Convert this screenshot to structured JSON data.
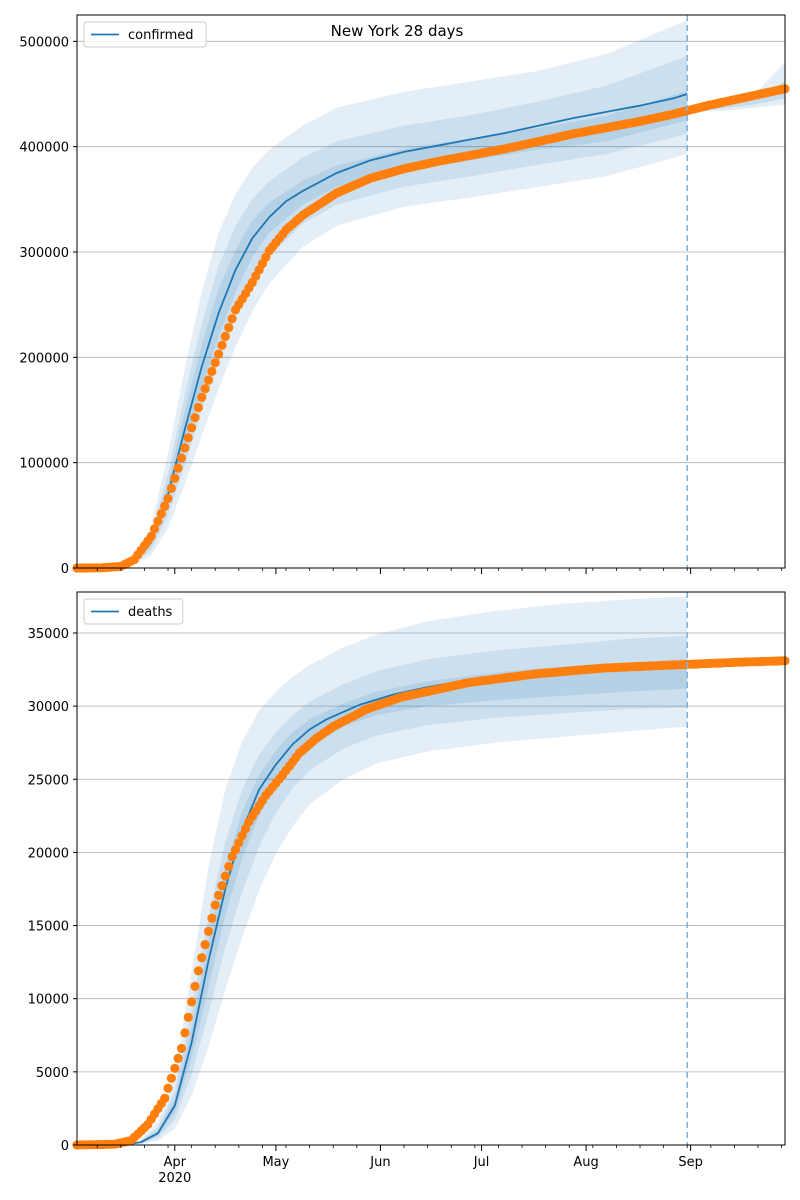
{
  "figure_title": "New York 28 days",
  "colors": {
    "model_line": "#1f77b4",
    "observed_points": "#ff7f0e",
    "band": "#1f77b4",
    "forecast_line": "#7fb3dc",
    "grid": "#b0b0b0"
  },
  "x_axis": {
    "date_range": [
      "2020-03-03",
      "2020-09-29"
    ],
    "ticks": [
      {
        "date": "2020-04-01",
        "label": "Apr",
        "sublabel": "2020"
      },
      {
        "date": "2020-05-01",
        "label": "May",
        "sublabel": ""
      },
      {
        "date": "2020-06-01",
        "label": "Jun",
        "sublabel": ""
      },
      {
        "date": "2020-07-01",
        "label": "Jul",
        "sublabel": ""
      },
      {
        "date": "2020-08-01",
        "label": "Aug",
        "sublabel": ""
      },
      {
        "date": "2020-09-01",
        "label": "Sep",
        "sublabel": ""
      }
    ],
    "forecast_start": "2020-08-31"
  },
  "chart_data": [
    {
      "type": "line",
      "legend": "confirmed",
      "legend_position": "top-left",
      "grid": "horizontal",
      "ylim": [
        0,
        525000
      ],
      "yticks": [
        0,
        100000,
        200000,
        300000,
        400000,
        500000
      ],
      "ytick_labels": [
        "0",
        "100000",
        "200000",
        "300000",
        "400000",
        "500000"
      ],
      "model": {
        "dates": [
          "2020-03-03",
          "2020-03-14",
          "2020-03-17",
          "2020-03-20",
          "2020-03-25",
          "2020-03-30",
          "2020-04-04",
          "2020-04-09",
          "2020-04-14",
          "2020-04-19",
          "2020-04-24",
          "2020-04-29",
          "2020-05-04",
          "2020-05-09",
          "2020-05-19",
          "2020-05-29",
          "2020-06-08",
          "2020-06-18",
          "2020-06-28",
          "2020-07-08",
          "2020-07-18",
          "2020-07-28",
          "2020-08-07",
          "2020-08-17",
          "2020-08-27",
          "2020-08-31"
        ],
        "values": [
          0,
          500,
          1500,
          5000,
          25000,
          70000,
          132000,
          191000,
          242000,
          283000,
          313000,
          333000,
          348000,
          358000,
          375000,
          387000,
          395000,
          401000,
          407000,
          413000,
          420000,
          427000,
          433000,
          439000,
          446000,
          450000
        ]
      },
      "bands": {
        "dates": [
          "2020-03-14",
          "2020-03-20",
          "2020-03-25",
          "2020-03-30",
          "2020-04-04",
          "2020-04-09",
          "2020-04-14",
          "2020-04-19",
          "2020-04-24",
          "2020-04-29",
          "2020-05-09",
          "2020-05-19",
          "2020-06-08",
          "2020-06-28",
          "2020-07-18",
          "2020-08-07",
          "2020-08-31"
        ],
        "outer_high": [
          500,
          7000,
          40000,
          108000,
          190000,
          262000,
          318000,
          355000,
          380000,
          397000,
          420000,
          437000,
          452000,
          462000,
          472000,
          488000,
          520000
        ],
        "mid_high": [
          500,
          6000,
          33000,
          90000,
          165000,
          232000,
          287000,
          325000,
          350000,
          367000,
          390000,
          405000,
          420000,
          430000,
          443000,
          458000,
          486000
        ],
        "inner_high": [
          500,
          5500,
          29000,
          80000,
          150000,
          212000,
          265000,
          302000,
          330000,
          347000,
          368000,
          382000,
          398000,
          408000,
          418000,
          429000,
          453000
        ],
        "inner_low": [
          500,
          4500,
          21000,
          60000,
          114000,
          170000,
          220000,
          262000,
          295000,
          318000,
          345000,
          362000,
          377000,
          387000,
          397000,
          405000,
          425000
        ],
        "mid_low": [
          500,
          4000,
          17000,
          50000,
          98000,
          150000,
          196000,
          238000,
          272000,
          296000,
          327000,
          345000,
          362000,
          372000,
          383000,
          393000,
          412000
        ],
        "outer_low": [
          500,
          3000,
          12000,
          38000,
          80000,
          125000,
          170000,
          210000,
          244000,
          270000,
          305000,
          325000,
          343000,
          352000,
          362000,
          372000,
          393000
        ]
      },
      "forecast_bands": {
        "dates": [
          "2020-08-31",
          "2020-09-10",
          "2020-09-20",
          "2020-09-29"
        ],
        "outer_high": [
          438000,
          440000,
          450000,
          480000
        ],
        "outer_low": [
          432000,
          434000,
          437000,
          440000
        ],
        "inner_high": [
          436000,
          438000,
          445000,
          462000
        ],
        "inner_low": [
          433000,
          436000,
          440000,
          446000
        ]
      },
      "observed": {
        "dates": [
          "2020-03-03",
          "2020-03-10",
          "2020-03-16",
          "2020-03-20",
          "2020-03-25",
          "2020-03-30",
          "2020-04-04",
          "2020-04-09",
          "2020-04-14",
          "2020-04-19",
          "2020-04-24",
          "2020-04-29",
          "2020-05-04",
          "2020-05-09",
          "2020-05-19",
          "2020-05-29",
          "2020-06-08",
          "2020-06-18",
          "2020-06-28",
          "2020-07-08",
          "2020-07-18",
          "2020-07-28",
          "2020-08-07",
          "2020-08-17",
          "2020-08-27",
          "2020-09-06",
          "2020-09-16",
          "2020-09-29"
        ],
        "values": [
          0,
          100,
          1500,
          8000,
          30000,
          66000,
          114000,
          162000,
          203000,
          245000,
          271000,
          301000,
          321000,
          335000,
          356000,
          370000,
          379000,
          386000,
          392000,
          398000,
          405000,
          412000,
          418000,
          424000,
          431000,
          439000,
          446000,
          455000
        ]
      }
    },
    {
      "type": "line",
      "legend": "deaths",
      "legend_position": "top-left",
      "grid": "horizontal",
      "ylim": [
        0,
        37800
      ],
      "yticks": [
        0,
        5000,
        10000,
        15000,
        20000,
        25000,
        30000,
        35000
      ],
      "ytick_labels": [
        "0",
        "5000",
        "10000",
        "15000",
        "20000",
        "25000",
        "30000",
        "35000"
      ],
      "model": {
        "dates": [
          "2020-03-03",
          "2020-03-17",
          "2020-03-22",
          "2020-03-27",
          "2020-04-01",
          "2020-04-06",
          "2020-04-11",
          "2020-04-16",
          "2020-04-21",
          "2020-04-26",
          "2020-05-01",
          "2020-05-06",
          "2020-05-11",
          "2020-05-16",
          "2020-05-26",
          "2020-06-05",
          "2020-06-15",
          "2020-06-25",
          "2020-07-05",
          "2020-07-15",
          "2020-07-25",
          "2020-08-04",
          "2020-08-14",
          "2020-08-24",
          "2020-08-31"
        ],
        "values": [
          0,
          0,
          200,
          800,
          2700,
          7000,
          12600,
          17500,
          21500,
          24300,
          26000,
          27400,
          28400,
          29100,
          30100,
          30800,
          31300,
          31700,
          32000,
          32200,
          32400,
          32500,
          32600,
          32700,
          32800
        ]
      },
      "bands": {
        "dates": [
          "2020-03-22",
          "2020-03-27",
          "2020-04-01",
          "2020-04-06",
          "2020-04-11",
          "2020-04-16",
          "2020-04-21",
          "2020-04-26",
          "2020-05-01",
          "2020-05-06",
          "2020-05-11",
          "2020-05-21",
          "2020-05-31",
          "2020-06-15",
          "2020-07-05",
          "2020-07-25",
          "2020-08-14",
          "2020-08-31"
        ],
        "outer_high": [
          400,
          1600,
          4800,
          11800,
          19000,
          24300,
          27600,
          29700,
          31000,
          32000,
          32800,
          34000,
          34900,
          35800,
          36500,
          37000,
          37300,
          37500
        ],
        "mid_high": [
          300,
          1200,
          3700,
          9300,
          15600,
          20700,
          24300,
          26700,
          28200,
          29400,
          30300,
          31500,
          32400,
          33200,
          33800,
          34200,
          34600,
          34800
        ],
        "inner_high": [
          250,
          1000,
          3200,
          8000,
          14000,
          19000,
          22800,
          25300,
          27000,
          28200,
          29100,
          30200,
          31000,
          31700,
          32300,
          32700,
          33000,
          33200
        ],
        "inner_low": [
          150,
          650,
          2200,
          5900,
          10800,
          15700,
          19600,
          22500,
          24600,
          26100,
          27200,
          28600,
          29400,
          30000,
          30400,
          30700,
          31000,
          31200
        ],
        "mid_low": [
          100,
          500,
          1700,
          4800,
          9000,
          13500,
          17300,
          20400,
          22700,
          24400,
          25600,
          27100,
          28000,
          28700,
          29200,
          29500,
          29800,
          29900
        ],
        "outer_low": [
          50,
          300,
          1100,
          3400,
          6700,
          10600,
          14200,
          17400,
          19900,
          21800,
          23300,
          25000,
          26100,
          26900,
          27500,
          27900,
          28300,
          28600
        ]
      },
      "observed": {
        "dates": [
          "2020-03-03",
          "2020-03-14",
          "2020-03-19",
          "2020-03-24",
          "2020-03-29",
          "2020-04-03",
          "2020-04-08",
          "2020-04-13",
          "2020-04-18",
          "2020-04-23",
          "2020-04-28",
          "2020-05-03",
          "2020-05-08",
          "2020-05-13",
          "2020-05-18",
          "2020-05-28",
          "2020-06-07",
          "2020-06-17",
          "2020-06-27",
          "2020-07-07",
          "2020-07-17",
          "2020-07-27",
          "2020-08-06",
          "2020-08-16",
          "2020-08-26",
          "2020-09-05",
          "2020-09-15",
          "2020-09-29"
        ],
        "values": [
          0,
          50,
          300,
          1400,
          3200,
          6600,
          11900,
          16400,
          19700,
          22100,
          23900,
          25300,
          26800,
          27800,
          28600,
          29800,
          30600,
          31100,
          31600,
          31900,
          32200,
          32400,
          32600,
          32700,
          32800,
          32900,
          33000,
          33100
        ]
      }
    }
  ]
}
